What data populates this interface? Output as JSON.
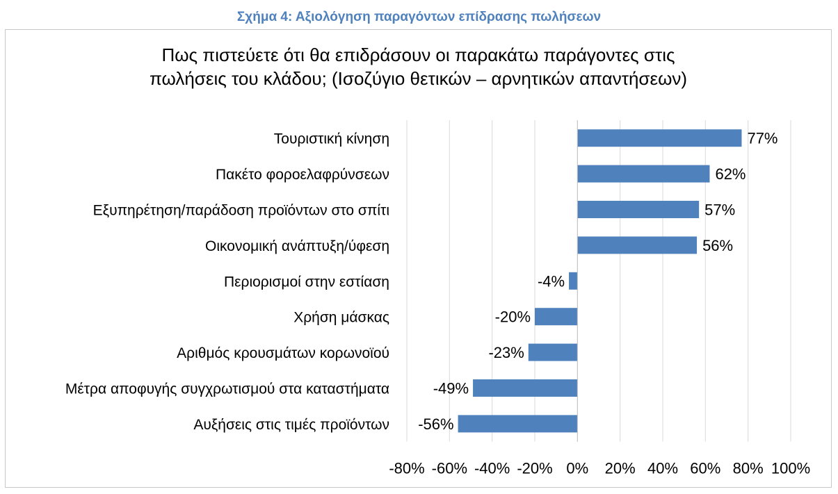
{
  "figure_caption": "Σχήμα 4: Αξιολόγηση παραγόντων επίδρασης πωλήσεων",
  "chart_data": {
    "type": "bar",
    "orientation": "horizontal",
    "title_lines": [
      "Πως πιστεύετε ότι θα επιδράσουν οι παρακάτω παράγοντες στις",
      "πωλήσεις του κλάδου; (Ισοζύγιο θετικών – αρνητικών απαντήσεων)"
    ],
    "categories": [
      "Τουριστική κίνηση",
      "Πακέτο φοροελαφρύνσεων",
      "Εξυπηρέτηση/παράδοση προϊόντων στο σπίτι",
      "Οικονομική ανάπτυξη/ύφεση",
      "Περιορισμοί στην εστίαση",
      "Χρήση μάσκας",
      "Αριθμός κρουσμάτων κορωνοϊού",
      "Μέτρα αποφυγής συγχρωτισμού στα καταστήματα",
      "Αυξήσεις στις τιμές προϊόντων"
    ],
    "values": [
      77,
      62,
      57,
      56,
      -4,
      -20,
      -23,
      -49,
      -56
    ],
    "data_labels": [
      "77%",
      "62%",
      "57%",
      "56%",
      "-4%",
      "-20%",
      "-23%",
      "-49%",
      "-56%"
    ],
    "xlim": [
      -80,
      100
    ],
    "x_ticks": [
      -80,
      -60,
      -40,
      -20,
      0,
      20,
      40,
      60,
      80,
      100
    ],
    "x_tick_labels": [
      "-80%",
      "-60%",
      "-40%",
      "-20%",
      "0%",
      "20%",
      "40%",
      "60%",
      "80%",
      "100%"
    ],
    "bar_color": "#4f81bd",
    "grid": "vertical",
    "legend": "none"
  }
}
